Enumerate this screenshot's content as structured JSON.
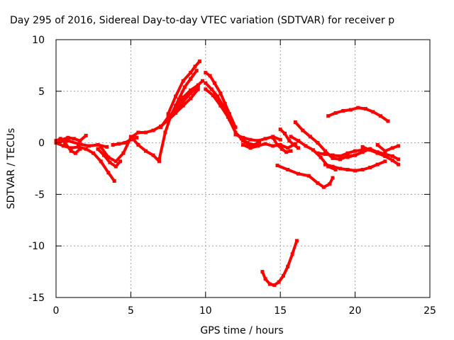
{
  "chart_data": {
    "type": "scatter",
    "title": "Day 295 of 2016, Sidereal Day-to-day VTEC variation (SDTVAR) for receiver p",
    "xlabel": "GPS time / hours",
    "ylabel": "SDTVAR / TECUs",
    "xlim": [
      0,
      25
    ],
    "ylim": [
      -15,
      10
    ],
    "xticks": [
      0,
      5,
      10,
      15,
      20,
      25
    ],
    "yticks": [
      10,
      5,
      0,
      -5,
      -10,
      -15
    ],
    "grid": true,
    "series": [
      {
        "x": [
          0,
          0.3,
          0.6,
          1.0,
          1.3,
          1.6
        ],
        "y": [
          0.2,
          0.4,
          0.0,
          -0.8,
          -1.0,
          -0.6
        ]
      },
      {
        "x": [
          0,
          0.4,
          0.8,
          1.2,
          1.6,
          2.0
        ],
        "y": [
          0.0,
          0.3,
          0.5,
          0.4,
          0.2,
          0.7
        ]
      },
      {
        "x": [
          0,
          0.5,
          1.0,
          1.5,
          2.0,
          2.5,
          3.0,
          3.5,
          3.9
        ],
        "y": [
          0.0,
          -0.3,
          -0.5,
          -0.4,
          -0.6,
          -1.0,
          -1.8,
          -2.9,
          -3.7
        ]
      },
      {
        "x": [
          0.2,
          0.8,
          1.5,
          2.2,
          2.8,
          3.4
        ],
        "y": [
          0.1,
          0.2,
          -0.1,
          -0.3,
          -0.2,
          -0.4
        ]
      },
      {
        "x": [
          2.8,
          3.2,
          3.6,
          4.0,
          4.3
        ],
        "y": [
          -0.6,
          -1.2,
          -1.9,
          -2.3,
          -1.8
        ]
      },
      {
        "x": [
          3.0,
          3.5,
          4.0,
          4.5,
          5.0,
          5.5,
          6.0,
          6.5,
          7.0,
          7.5,
          8.0,
          8.5,
          9.0,
          9.5
        ],
        "y": [
          -0.4,
          -1.4,
          -1.8,
          -1.0,
          0.5,
          1.0,
          1.0,
          1.2,
          1.6,
          2.2,
          2.9,
          3.6,
          4.3,
          5.2
        ]
      },
      {
        "x": [
          3.8,
          4.2,
          4.6,
          5.0,
          5.4
        ],
        "y": [
          -0.2,
          -0.1,
          0.0,
          0.3,
          0.5
        ]
      },
      {
        "x": [
          5.0,
          5.5,
          6.0,
          6.5,
          6.9
        ],
        "y": [
          0.6,
          -0.2,
          -0.8,
          -1.2,
          -1.8
        ]
      },
      {
        "x": [
          6.9,
          7.3,
          7.7,
          8.2,
          8.6,
          9.0,
          9.4
        ],
        "y": [
          -1.6,
          1.0,
          2.7,
          4.2,
          5.4,
          6.2,
          7.0
        ]
      },
      {
        "x": [
          7.0,
          7.5,
          8.0,
          8.5,
          9.0,
          9.5
        ],
        "y": [
          1.5,
          2.5,
          3.2,
          4.0,
          4.8,
          5.5
        ]
      },
      {
        "x": [
          7.5,
          8.0,
          8.5,
          9.0,
          9.3,
          9.6
        ],
        "y": [
          2.8,
          4.5,
          6.0,
          6.8,
          7.4,
          7.9
        ]
      },
      {
        "x": [
          8.0,
          8.5,
          9.0,
          9.5,
          9.8
        ],
        "y": [
          3.6,
          4.4,
          5.1,
          5.6,
          6.0
        ]
      },
      {
        "x": [
          10.0,
          10.3,
          10.6,
          11.0,
          11.3,
          11.6,
          12.0
        ],
        "y": [
          6.8,
          6.5,
          5.8,
          4.8,
          3.8,
          2.8,
          1.5
        ]
      },
      {
        "x": [
          10.0,
          10.4,
          10.8,
          11.2,
          11.6,
          12.0,
          12.4,
          12.8,
          13.2,
          13.6
        ],
        "y": [
          5.8,
          5.2,
          4.5,
          3.5,
          2.3,
          1.0,
          0.4,
          0.0,
          -0.2,
          0.0
        ]
      },
      {
        "x": [
          10.0,
          10.5,
          11.0,
          11.5,
          12.0,
          12.5,
          13.0
        ],
        "y": [
          5.2,
          4.6,
          3.6,
          2.5,
          1.0,
          0.2,
          -0.3
        ]
      },
      {
        "x": [
          12.0,
          12.5,
          13.0,
          13.5,
          14.0,
          14.5,
          15.0
        ],
        "y": [
          0.8,
          0.5,
          0.3,
          0.2,
          0.4,
          0.6,
          0.3
        ]
      },
      {
        "x": [
          12.5,
          13.0,
          13.5,
          14.0,
          14.5,
          15.0,
          15.5,
          16.0
        ],
        "y": [
          -0.2,
          -0.5,
          -0.3,
          -0.1,
          -0.3,
          -0.2,
          -0.5,
          -0.1
        ]
      },
      {
        "x": [
          14.5,
          14.8,
          15.1,
          15.4,
          15.7
        ],
        "y": [
          0.5,
          -0.2,
          -0.6,
          -0.9,
          -0.8
        ]
      },
      {
        "x": [
          15.0,
          15.3,
          15.6,
          15.9,
          16.2
        ],
        "y": [
          1.3,
          0.9,
          0.2,
          -0.2,
          -0.5
        ]
      },
      {
        "x": [
          16.0,
          16.5,
          17.0,
          17.5,
          18.0,
          18.5,
          19.0,
          19.5,
          20.0
        ],
        "y": [
          2.0,
          1.2,
          0.6,
          0.0,
          -0.8,
          -1.5,
          -1.6,
          -1.3,
          -1.2
        ]
      },
      {
        "x": [
          15.7,
          16.2,
          16.7,
          17.2,
          17.7,
          18.2,
          18.7
        ],
        "y": [
          0.6,
          0.2,
          -0.3,
          -0.7,
          -1.4,
          -2.3,
          -2.6
        ]
      },
      {
        "x": [
          14.8,
          15.5,
          16.2,
          16.9,
          17.5,
          17.9,
          18.3,
          18.5
        ],
        "y": [
          -2.2,
          -2.6,
          -3.0,
          -3.2,
          -3.9,
          -4.3,
          -4.0,
          -3.4
        ]
      },
      {
        "x": [
          18.2,
          18.7,
          19.2,
          19.7,
          20.2,
          20.7,
          21.2,
          21.7,
          22.2
        ],
        "y": [
          2.6,
          2.9,
          3.1,
          3.2,
          3.4,
          3.3,
          3.0,
          2.6,
          2.1
        ]
      },
      {
        "x": [
          18.0,
          18.5,
          19.0,
          19.5,
          20.0,
          20.5,
          21.0,
          21.5,
          22.0
        ],
        "y": [
          -2.1,
          -2.3,
          -2.5,
          -2.6,
          -2.7,
          -2.6,
          -2.4,
          -2.1,
          -1.8
        ]
      },
      {
        "x": [
          17.5,
          18.0,
          18.5,
          19.0,
          19.5,
          20.0,
          20.5,
          21.0
        ],
        "y": [
          -1.0,
          -1.1,
          -1.2,
          -1.3,
          -1.0,
          -0.8,
          -0.7,
          -0.6
        ]
      },
      {
        "x": [
          19.5,
          20.0,
          20.5,
          21.0,
          21.5,
          22.0,
          22.5,
          22.9
        ],
        "y": [
          -1.4,
          -1.2,
          -0.9,
          -0.6,
          -0.9,
          -1.1,
          -1.3,
          -1.6
        ]
      },
      {
        "x": [
          20.5,
          21.0,
          21.5,
          22.0,
          22.5,
          22.9
        ],
        "y": [
          -0.4,
          -0.7,
          -1.0,
          -1.3,
          -1.7,
          -2.1
        ]
      },
      {
        "x": [
          21.5,
          22.0,
          22.5,
          22.9
        ],
        "y": [
          -0.2,
          -0.8,
          -0.5,
          -0.3
        ]
      },
      {
        "x": [
          13.8,
          14.0,
          14.3,
          14.6,
          14.9,
          15.2,
          15.5,
          15.8,
          16.1
        ],
        "y": [
          -12.5,
          -13.2,
          -13.7,
          -13.8,
          -13.5,
          -12.9,
          -12.0,
          -10.8,
          -9.5
        ]
      }
    ]
  }
}
